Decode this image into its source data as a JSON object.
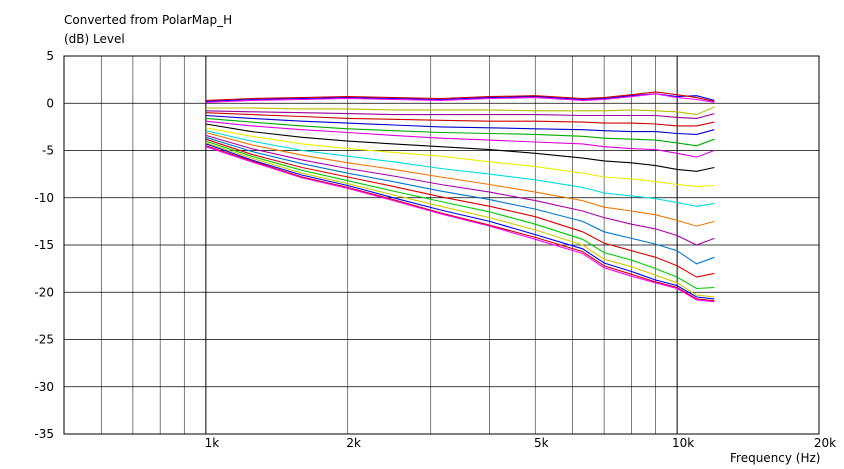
{
  "chart_data": {
    "type": "line",
    "title": "Converted from PolarMap_H",
    "ylabel": "(dB)  Level",
    "xlabel": "Frequency  (Hz)",
    "xscale": "log",
    "xlim": [
      500,
      20000
    ],
    "ylim": [
      -35,
      5
    ],
    "grid": true,
    "y_ticks": [
      5,
      0,
      -5,
      -10,
      -15,
      -20,
      -25,
      -30,
      -35
    ],
    "y_tick_labels": [
      "5",
      "0",
      "-5",
      "-10",
      "-15",
      "-20",
      "-25",
      "-30",
      "-35"
    ],
    "x_ticks": [
      1000,
      2000,
      5000,
      10000,
      20000
    ],
    "x_tick_labels": [
      "1k",
      "2k",
      "5k",
      "10k",
      "20k"
    ],
    "x": [
      1000,
      1250,
      1600,
      2000,
      2500,
      3150,
      4000,
      5000,
      6300,
      7000,
      8000,
      9000,
      10000,
      11000,
      12000
    ],
    "series": [
      {
        "color": "#0000ff",
        "values": [
          0.2,
          0.4,
          0.5,
          0.6,
          0.5,
          0.4,
          0.6,
          0.7,
          0.4,
          0.5,
          0.8,
          1.0,
          0.7,
          0.8,
          0.3
        ]
      },
      {
        "color": "#cc0000",
        "values": [
          0.3,
          0.5,
          0.6,
          0.7,
          0.6,
          0.5,
          0.7,
          0.8,
          0.5,
          0.6,
          0.9,
          1.2,
          0.9,
          0.6,
          0.2
        ]
      },
      {
        "color": "#ff00ff",
        "values": [
          0.1,
          0.3,
          0.4,
          0.5,
          0.4,
          0.3,
          0.5,
          0.6,
          0.3,
          0.4,
          0.7,
          1.0,
          0.6,
          0.4,
          0.1
        ]
      },
      {
        "color": "#bbbb00",
        "values": [
          -0.5,
          -0.5,
          -0.6,
          -0.6,
          -0.7,
          -0.7,
          -0.7,
          -0.8,
          -0.8,
          -0.8,
          -0.7,
          -0.8,
          -0.9,
          -1.2,
          -0.4
        ]
      },
      {
        "color": "#990099",
        "values": [
          -0.8,
          -0.9,
          -1.0,
          -1.1,
          -1.2,
          -1.2,
          -1.2,
          -1.2,
          -1.3,
          -1.3,
          -1.3,
          -1.3,
          -1.5,
          -1.6,
          -1.1
        ]
      },
      {
        "color": "#cc0000",
        "values": [
          -1.0,
          -1.2,
          -1.4,
          -1.6,
          -1.7,
          -1.8,
          -1.9,
          -1.9,
          -2.0,
          -2.1,
          -2.1,
          -2.2,
          -2.4,
          -2.4,
          -2.0
        ]
      },
      {
        "color": "#0000cc",
        "values": [
          -1.3,
          -1.6,
          -1.9,
          -2.1,
          -2.3,
          -2.5,
          -2.6,
          -2.7,
          -2.8,
          -2.9,
          -3.0,
          -3.0,
          -3.2,
          -3.3,
          -2.8
        ]
      },
      {
        "color": "#00aa00",
        "values": [
          -1.6,
          -2.0,
          -2.4,
          -2.7,
          -2.9,
          -3.1,
          -3.2,
          -3.3,
          -3.5,
          -3.7,
          -3.8,
          -3.9,
          -4.2,
          -4.5,
          -3.8
        ]
      },
      {
        "color": "#dd00dd",
        "values": [
          -1.9,
          -2.4,
          -2.8,
          -3.1,
          -3.4,
          -3.7,
          -3.9,
          -4.1,
          -4.3,
          -4.6,
          -4.8,
          -4.9,
          -5.3,
          -5.7,
          -5.0
        ]
      },
      {
        "color": "#000000",
        "values": [
          -2.2,
          -3.0,
          -3.6,
          -4.0,
          -4.3,
          -4.6,
          -4.9,
          -5.3,
          -5.8,
          -6.1,
          -6.3,
          -6.6,
          -7.0,
          -7.2,
          -6.8
        ]
      },
      {
        "color": "#eeee00",
        "values": [
          -2.6,
          -3.5,
          -4.3,
          -4.8,
          -5.2,
          -5.6,
          -6.2,
          -6.7,
          -7.4,
          -7.8,
          -8.0,
          -8.3,
          -8.6,
          -8.8,
          -8.7
        ]
      },
      {
        "color": "#00dddd",
        "values": [
          -2.9,
          -4.0,
          -5.0,
          -5.6,
          -6.2,
          -6.9,
          -7.5,
          -8.1,
          -8.9,
          -9.5,
          -9.8,
          -10.1,
          -10.5,
          -10.9,
          -10.6
        ]
      },
      {
        "color": "#ee7700",
        "values": [
          -3.1,
          -4.4,
          -5.5,
          -6.3,
          -7.0,
          -7.8,
          -8.6,
          -9.4,
          -10.3,
          -11.0,
          -11.4,
          -11.8,
          -12.4,
          -13.0,
          -12.5
        ]
      },
      {
        "color": "#aa00aa",
        "values": [
          -3.4,
          -4.8,
          -6.0,
          -6.9,
          -7.7,
          -8.6,
          -9.4,
          -10.3,
          -11.4,
          -12.1,
          -12.8,
          -13.3,
          -14.0,
          -15.0,
          -14.3
        ]
      },
      {
        "color": "#0077cc",
        "values": [
          -3.6,
          -5.1,
          -6.4,
          -7.4,
          -8.3,
          -9.3,
          -10.2,
          -11.2,
          -12.5,
          -13.6,
          -14.3,
          -14.9,
          -15.6,
          -17.0,
          -16.3
        ]
      },
      {
        "color": "#dd0000",
        "values": [
          -3.8,
          -5.4,
          -6.8,
          -7.8,
          -8.8,
          -9.9,
          -10.9,
          -12.0,
          -13.6,
          -14.8,
          -15.6,
          -16.3,
          -17.2,
          -18.4,
          -18.0
        ]
      },
      {
        "color": "#00cc00",
        "values": [
          -4.0,
          -5.6,
          -7.1,
          -8.2,
          -9.3,
          -10.4,
          -11.5,
          -12.8,
          -14.4,
          -15.8,
          -16.6,
          -17.5,
          -18.4,
          -19.6,
          -19.5
        ]
      },
      {
        "color": "#cccc00",
        "values": [
          -4.2,
          -5.8,
          -7.4,
          -8.5,
          -9.7,
          -10.9,
          -12.1,
          -13.4,
          -15.0,
          -16.5,
          -17.3,
          -18.2,
          -19.0,
          -20.3,
          -20.5
        ]
      },
      {
        "color": "#0000ff",
        "values": [
          -4.3,
          -6.0,
          -7.6,
          -8.7,
          -10.0,
          -11.3,
          -12.5,
          -13.9,
          -15.4,
          -16.9,
          -17.8,
          -18.7,
          -19.3,
          -20.5,
          -20.7
        ]
      },
      {
        "color": "#cc0000",
        "values": [
          -4.5,
          -6.1,
          -7.8,
          -8.9,
          -10.2,
          -11.6,
          -12.9,
          -14.2,
          -15.7,
          -17.2,
          -18.1,
          -18.9,
          -19.5,
          -20.7,
          -20.9
        ]
      },
      {
        "color": "#ff00ff",
        "values": [
          -4.6,
          -6.2,
          -7.9,
          -9.0,
          -10.3,
          -11.7,
          -13.0,
          -14.4,
          -15.9,
          -17.4,
          -18.3,
          -19.0,
          -19.6,
          -20.8,
          -21.0
        ]
      }
    ]
  }
}
